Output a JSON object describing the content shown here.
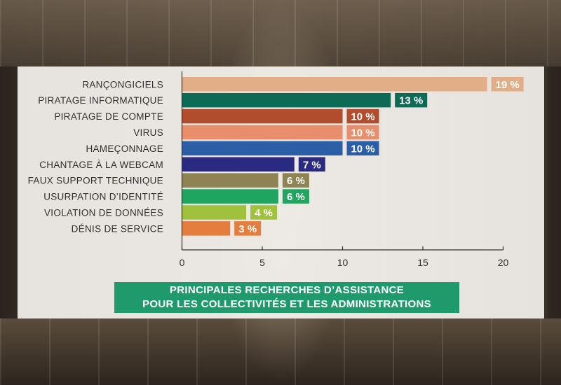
{
  "chart_data": {
    "type": "bar",
    "orientation": "horizontal",
    "categories": [
      "RANÇONGICIELS",
      "PIRATAGE INFORMATIQUE",
      "PIRATAGE DE COMPTE",
      "VIRUS",
      "HAMEÇONNAGE",
      "CHANTAGE À LA WEBCAM",
      "FAUX SUPPORT TECHNIQUE",
      "USURPATION D’IDENTITÉ",
      "VIOLATION DE DONNÉES",
      "DÉNIS DE SERVICE"
    ],
    "values": [
      19,
      13,
      10,
      10,
      10,
      7,
      6,
      6,
      4,
      3
    ],
    "value_labels": [
      "19 %",
      "13 %",
      "10 %",
      "10 %",
      "10 %",
      "7 %",
      "6 %",
      "6 %",
      "4 %",
      "3 %"
    ],
    "colors": [
      "#e2ae88",
      "#0d6a55",
      "#b14d2d",
      "#e98e6c",
      "#2a5ea6",
      "#2a2a83",
      "#8e8453",
      "#1fa55d",
      "#9fc13c",
      "#e47d3e"
    ],
    "xlim": [
      0,
      20
    ],
    "xticks": [
      0,
      5,
      10,
      15,
      20
    ],
    "grid": false,
    "title_lines": [
      "PRINCIPALES RECHERCHES D’ASSISTANCE",
      "POUR LES COLLECTIVITÉS ET LES ADMINISTRATIONS"
    ]
  }
}
